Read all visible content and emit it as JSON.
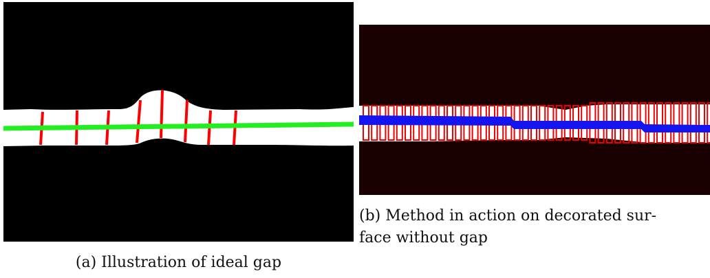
{
  "figures": [
    {
      "caption": "(a) Illustration of ideal gap"
    },
    {
      "caption_lines": [
        "(b) Method in action on decorated sur-",
        "face without gap"
      ]
    }
  ]
}
